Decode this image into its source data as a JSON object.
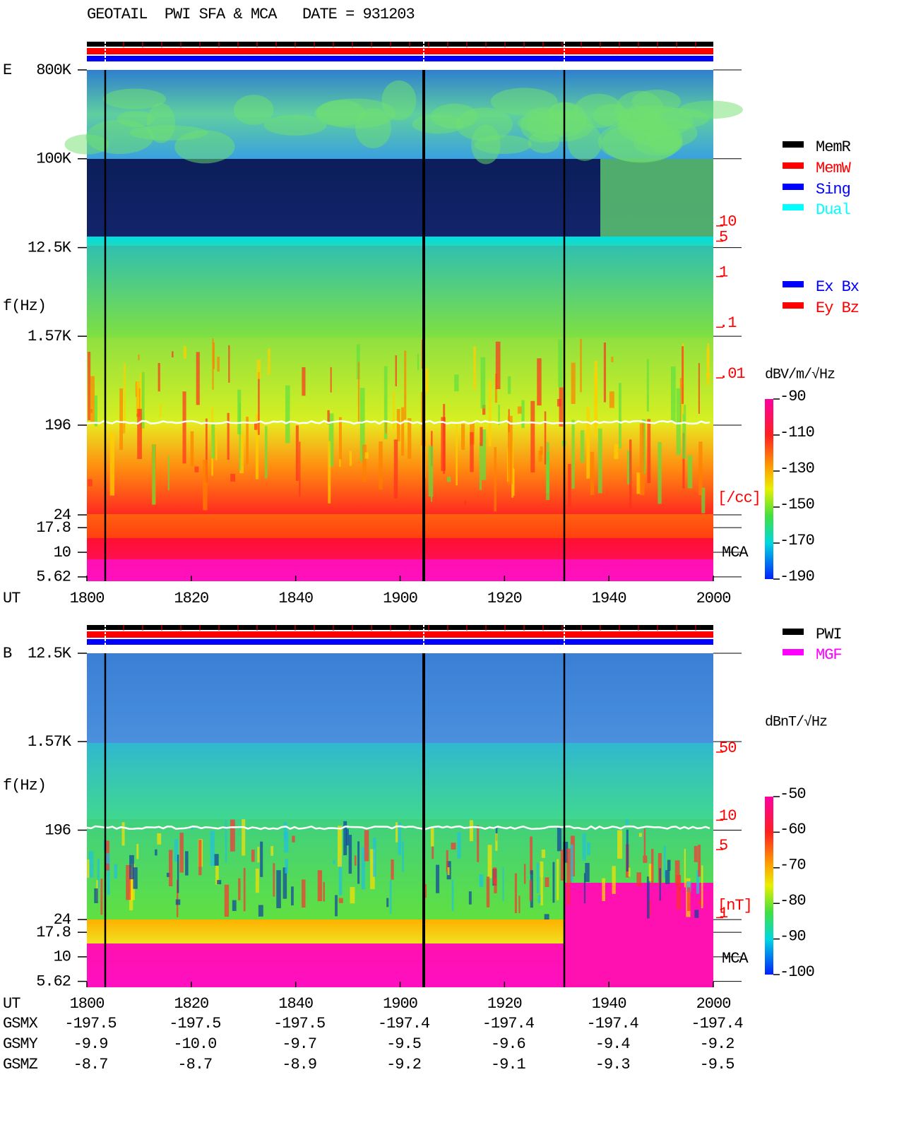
{
  "chart_data": [
    {
      "type": "spectrogram",
      "title": "GEOTAIL  PWI SFA & MCA   DATE = 931203",
      "panel_label": "E",
      "ylabel": "f(Hz)",
      "yscale": "log",
      "ylim": [
        5.08,
        800000
      ],
      "yticks": [
        {
          "value": 800000,
          "label": "800K"
        },
        {
          "value": 100000,
          "label": "100K"
        },
        {
          "value": 12500,
          "label": "12.5K"
        },
        {
          "value": 1570,
          "label": "1.57K"
        },
        196,
        24,
        17.8,
        10,
        5.62
      ],
      "xlabel": "UT",
      "xticks": [
        "1800",
        "1820",
        "1840",
        "1900",
        "1920",
        "1940",
        "2000"
      ],
      "y2label": "[/cc]",
      "y2scale": "log",
      "y2lim": [
        9.7e-07,
        12000
      ],
      "y2ticks": [
        10,
        5,
        1,
        {
          "value": 0.1,
          "label": ".1"
        },
        {
          "value": 0.01,
          "label": ".01"
        }
      ],
      "y2color": "#ff0000",
      "mca_label": "MCA",
      "colorbar": {
        "label": "dBV/m/√Hz",
        "lim": [
          -190,
          -90
        ],
        "ticks": [
          -90,
          -110,
          -130,
          -150,
          -170,
          -190
        ]
      },
      "legend": [
        {
          "name": "MemR",
          "color": "#000000"
        },
        {
          "name": "MemW",
          "color": "#ff0000"
        },
        {
          "name": "Sing",
          "color": "#0000ff"
        },
        {
          "name": "Dual",
          "color": "#00ffff"
        }
      ],
      "legend2": [
        {
          "name": "Ex Bx",
          "color": "#0000ff"
        },
        {
          "name": "Ey Bz",
          "color": "#ff0000"
        }
      ]
    },
    {
      "type": "spectrogram",
      "panel_label": "B",
      "ylabel": "f(Hz)",
      "yscale": "log",
      "ylim": [
        4.89,
        12500
      ],
      "yticks": [
        {
          "value": 12500,
          "label": "12.5K"
        },
        {
          "value": 1570,
          "label": "1.57K"
        },
        196,
        24,
        17.8,
        10,
        5.62
      ],
      "xlabel": "UT",
      "xticks": [
        "1800",
        "1820",
        "1840",
        "1900",
        "1920",
        "1940",
        "2000"
      ],
      "y2label": "[nT]",
      "y2scale": "log",
      "y2lim": [
        0.193,
        517
      ],
      "y2ticks": [
        50,
        10,
        5,
        1
      ],
      "y2color": "#ff0000",
      "mca_label": "MCA",
      "colorbar": {
        "label": "dBnT/√Hz",
        "lim": [
          -100,
          -50
        ],
        "ticks": [
          -50,
          -60,
          -70,
          -80,
          -90,
          -100
        ]
      },
      "legend": [
        {
          "name": "PWI",
          "color": "#000000"
        },
        {
          "name": "MGF",
          "color": "#ff00ff"
        }
      ],
      "orbit": {
        "labels": [
          "GSMX",
          "GSMY",
          "GSMZ"
        ],
        "rows": [
          [
            -197.5,
            -197.5,
            -197.5,
            -197.4,
            -197.4,
            -197.4,
            -197.4
          ],
          [
            -9.9,
            {
              "value": -10,
              "label": "-10.0"
            },
            -9.7,
            -9.5,
            -9.6,
            -9.4,
            -9.2
          ],
          [
            -8.7,
            -8.7,
            -8.9,
            -9.2,
            -9.1,
            -9.3,
            -9.5
          ]
        ]
      }
    }
  ]
}
